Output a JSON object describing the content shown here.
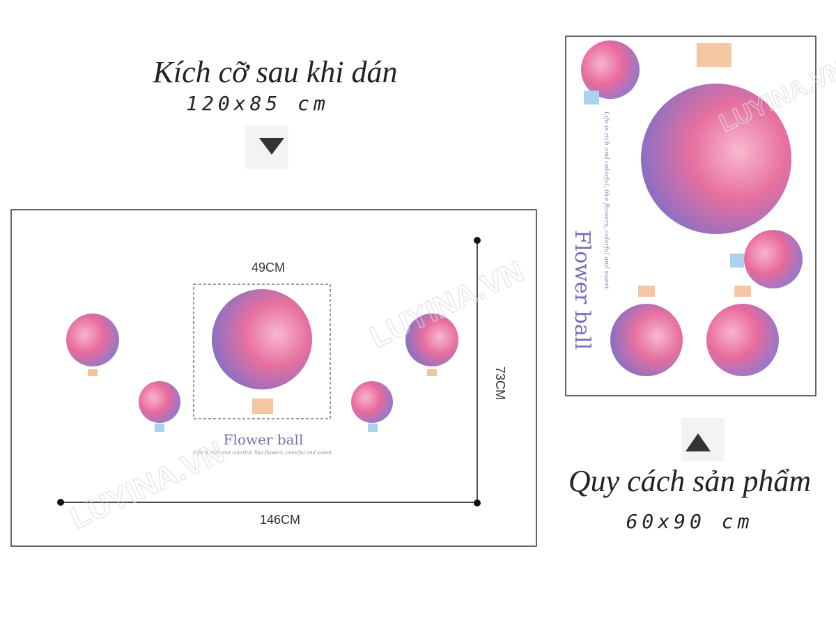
{
  "left": {
    "title": "Kích cỡ sau khi dán",
    "size": "120x85 cm",
    "preview": {
      "center_label": "49CM",
      "height_label": "73CM",
      "width_label": "146CM",
      "caption": "Flower ball",
      "tagline": "Life is rich and colorful, like flowers, colorful and sweet.",
      "watermark": "LUYINA.VN"
    }
  },
  "right": {
    "title": "Quy cách sản phẩm",
    "size": "60x90 cm",
    "sheet": {
      "caption": "Flower ball",
      "tagline": "Life is rich and colorful, like flowers, colorful and sweet.",
      "watermark": "LUYINA.VN"
    }
  }
}
